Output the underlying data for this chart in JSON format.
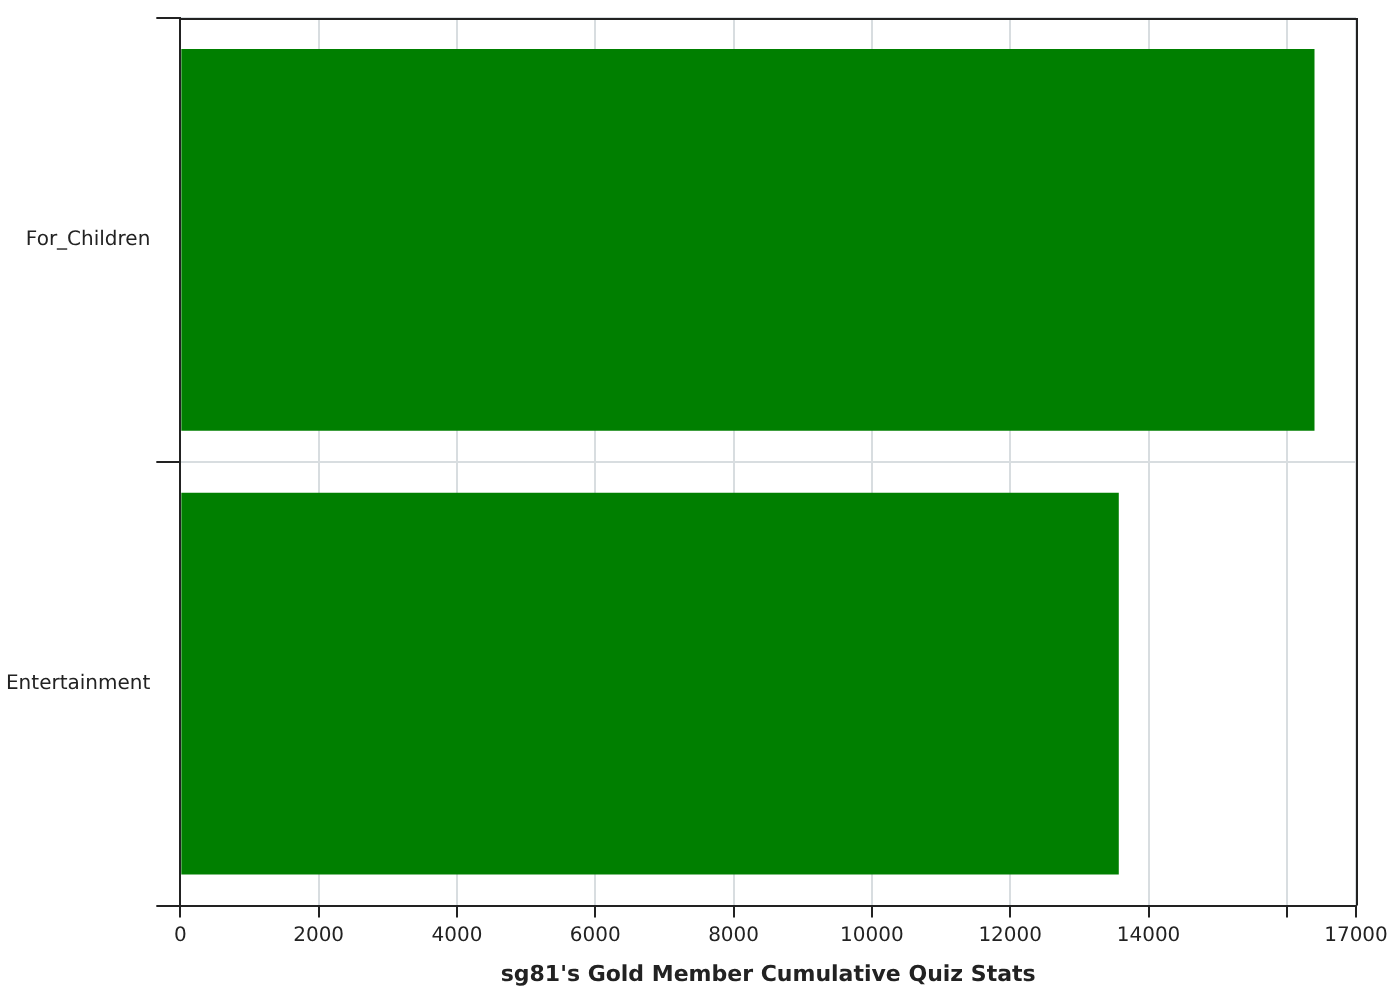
{
  "chart_data": {
    "type": "bar",
    "orientation": "horizontal",
    "xlabel": "sg81's Gold Member Cumulative Quiz Stats",
    "categories": [
      "For_Children",
      "Entertainment"
    ],
    "values": [
      16400,
      13570
    ],
    "color": "#007f00",
    "xlim": [
      0,
      17000
    ],
    "xticks": [
      0,
      2000,
      4000,
      6000,
      8000,
      10000,
      12000,
      14000,
      {
        "value": 16000,
        "label": null
      },
      17000
    ],
    "grid": true
  }
}
